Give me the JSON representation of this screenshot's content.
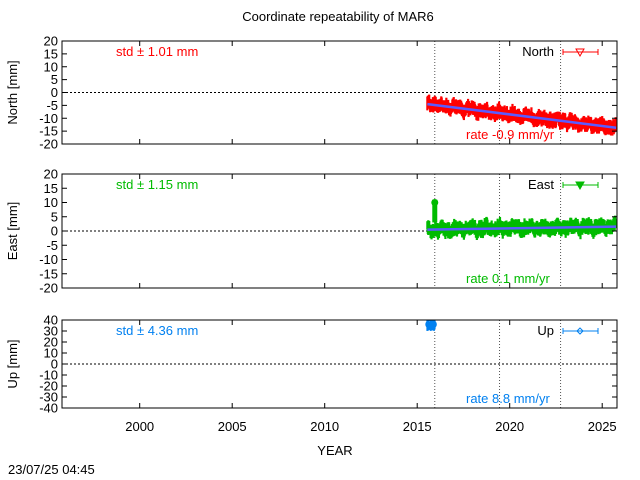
{
  "chart_data": {
    "type": "scatter",
    "title": "Coordinate repeatability of MAR6",
    "xlabel": "YEAR",
    "timestamp": "23/07/25 04:45",
    "xlim": [
      1995.8,
      2025.8
    ],
    "xticks": [
      2000,
      2005,
      2010,
      2015,
      2020,
      2025
    ],
    "vlines": [
      2015.95,
      2019.45,
      2022.75
    ],
    "data_start": 2015.55,
    "data_end": 2025.75,
    "panels": [
      {
        "id": "north",
        "ylabel": "North [mm]",
        "legend": "North",
        "ylim": [
          -20,
          20
        ],
        "yticks": [
          20,
          15,
          10,
          5,
          0,
          -5,
          -10,
          -15,
          -20
        ],
        "color": "#ff0000",
        "std_label": "std ± 1.01 mm",
        "rate_label": "rate -0.9 mm/yr",
        "rate": -0.9,
        "fit_start": -4.5,
        "band_half_width": 2.2,
        "marker": "triangle-down"
      },
      {
        "id": "east",
        "ylabel": "East [mm]",
        "legend": "East",
        "ylim": [
          -20,
          20
        ],
        "yticks": [
          20,
          15,
          10,
          5,
          0,
          -5,
          -10,
          -15,
          -20
        ],
        "color": "#00bb00",
        "std_label": "std ± 1.15 mm",
        "rate_label": "rate  0.1 mm/yr",
        "rate": 0.1,
        "fit_start": 0.5,
        "band_half_width": 2.0,
        "marker": "triangle-down-filled",
        "spike": {
          "x": 2015.95,
          "y_low": 3,
          "y_high": 11
        }
      },
      {
        "id": "up",
        "ylabel": "Up [mm]",
        "legend": "Up",
        "ylim": [
          -40,
          40
        ],
        "yticks": [
          40,
          30,
          20,
          10,
          0,
          -10,
          -20,
          -30,
          -40
        ],
        "color": "#0080f0",
        "std_label": "std ± 4.36 mm",
        "rate_label": "rate  8.8 mm/yr",
        "rate": 8.8,
        "fit_start": 36,
        "band_half_width": 4,
        "marker": "diamond",
        "cluster": {
          "x_start": 2015.55,
          "x_end": 2015.95,
          "y_low": 30,
          "y_high": 41
        }
      }
    ]
  }
}
